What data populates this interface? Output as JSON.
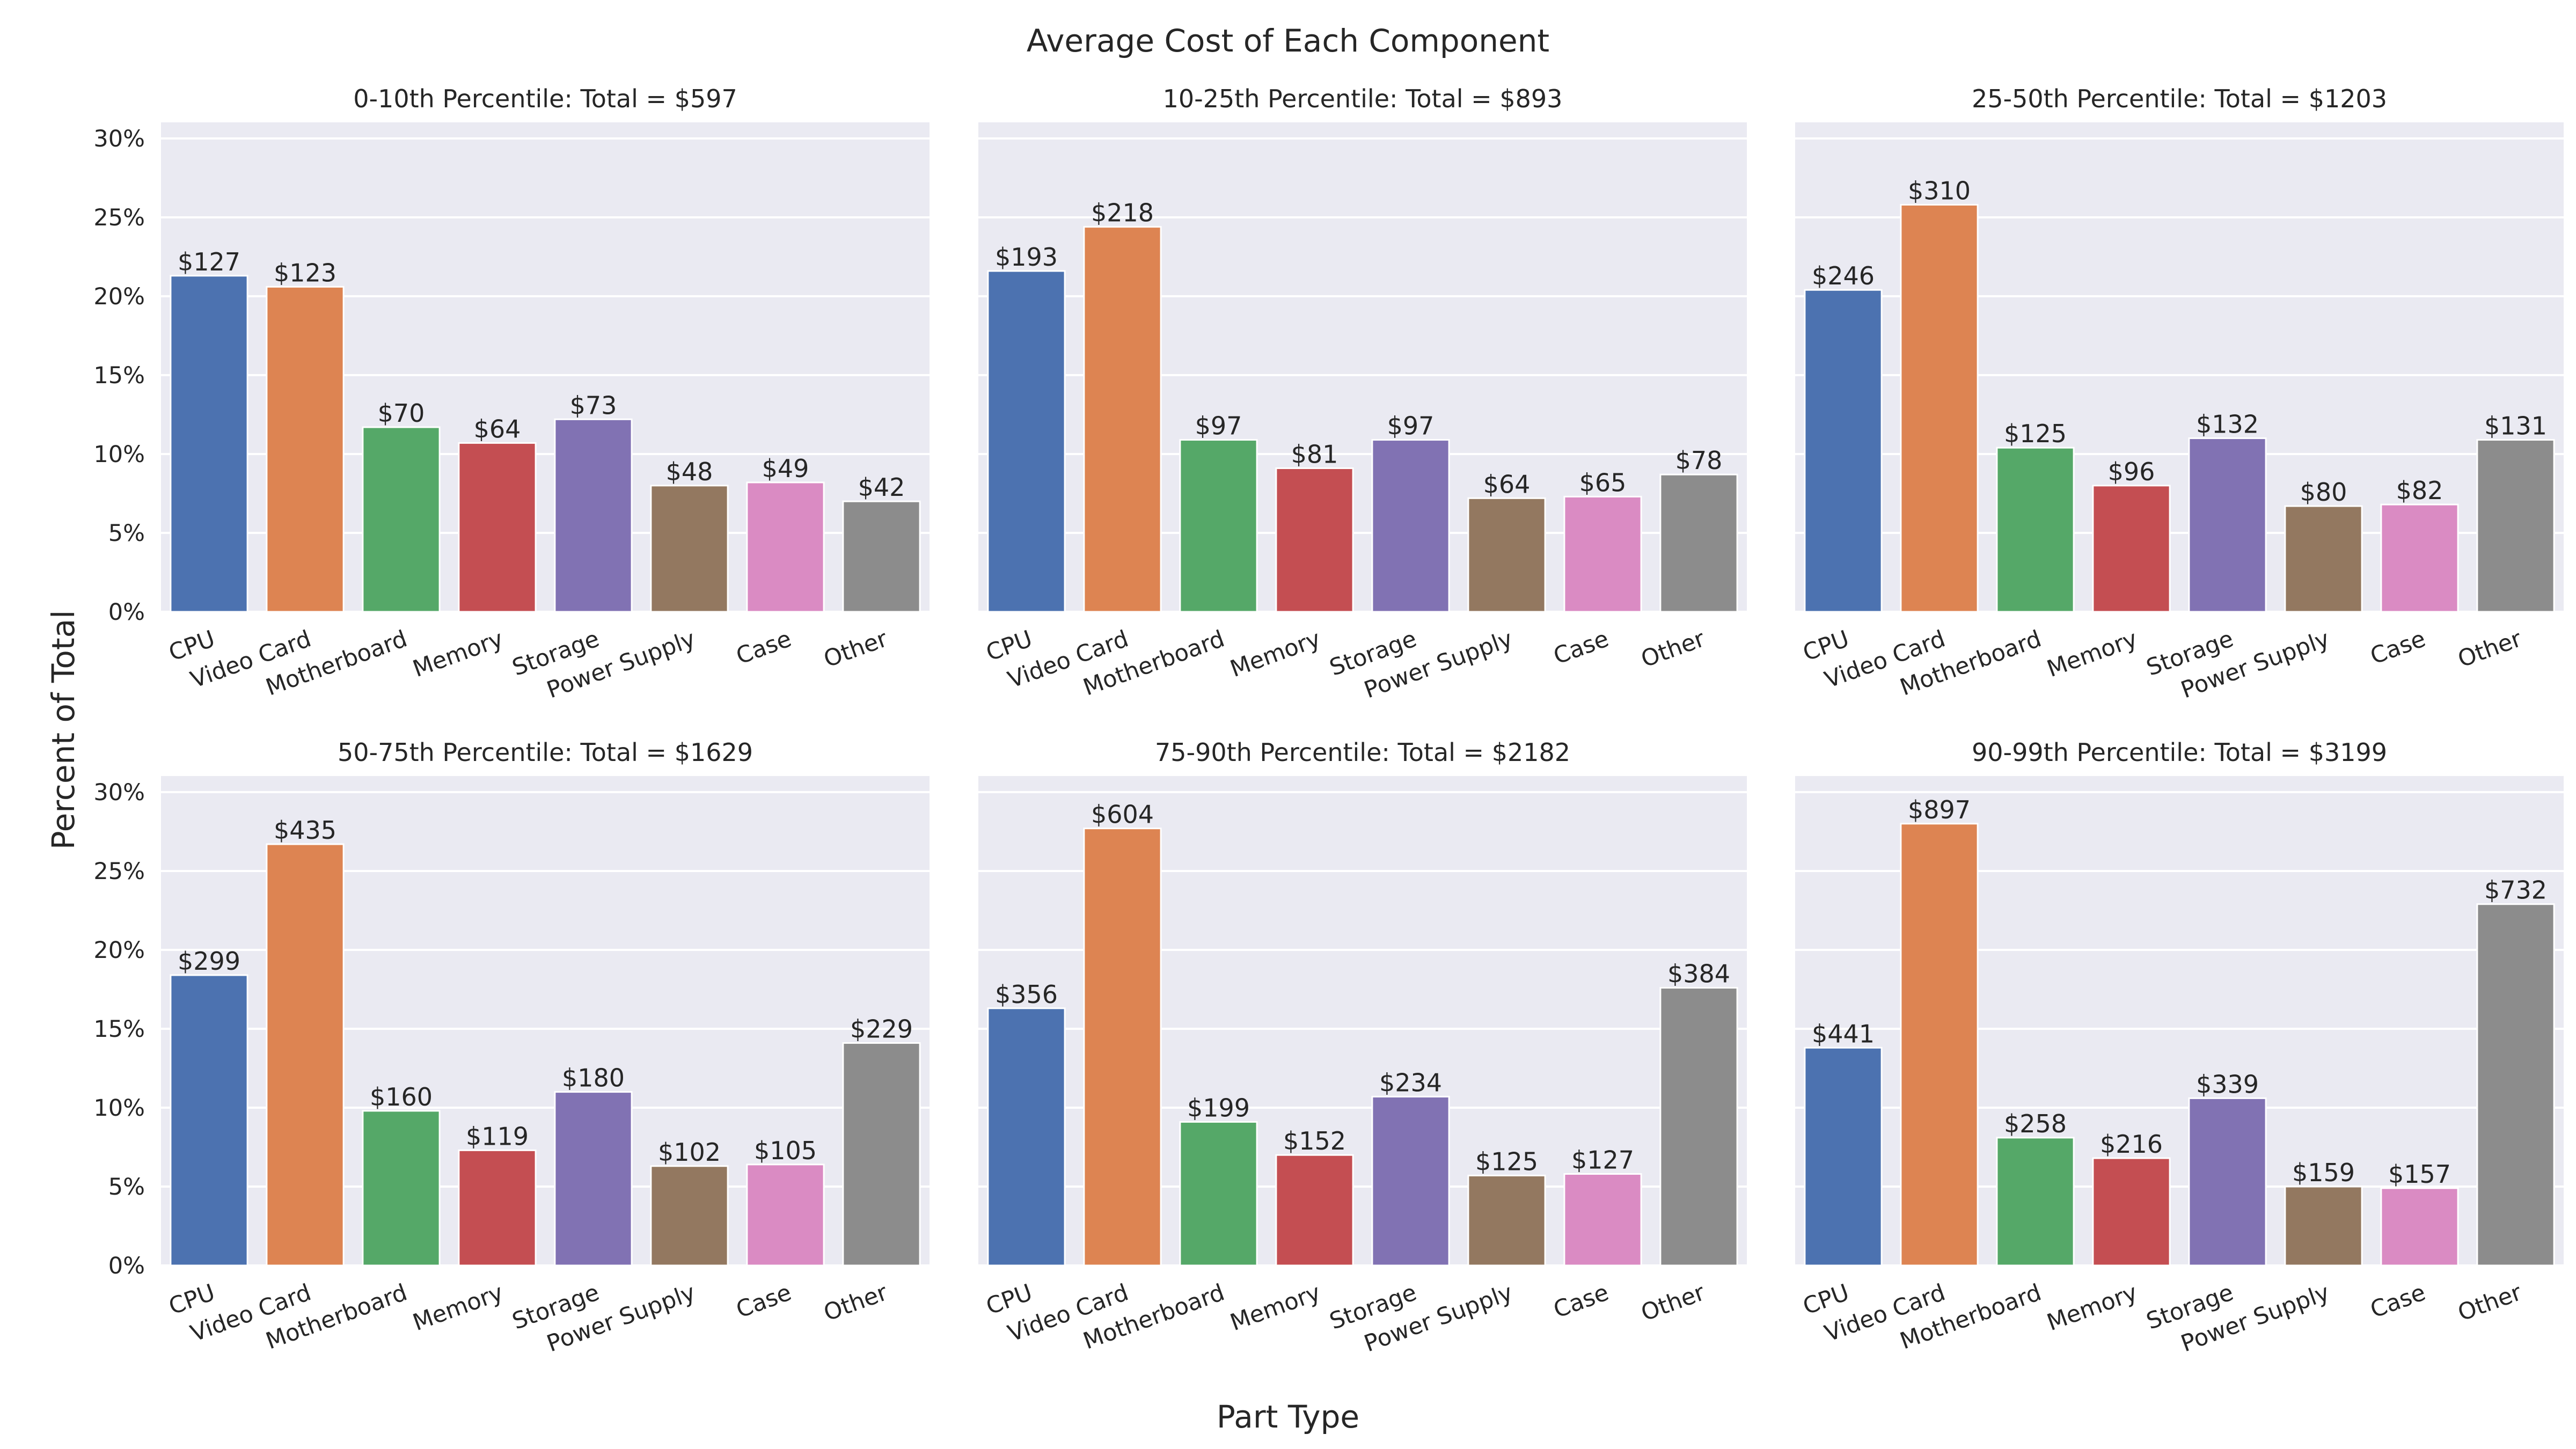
{
  "figure": {
    "title": "Average Cost of Each Component",
    "xlabel": "Part Type",
    "ylabel": "Percent of Total"
  },
  "colors": {
    "panel_background": "#eaeaf2",
    "grid": "#ffffff",
    "text": "#262626"
  },
  "chart_data": [
    {
      "type": "bar",
      "title": "0-10th Percentile: Total = $597",
      "categories": [
        "CPU",
        "Video Card",
        "Motherboard",
        "Memory",
        "Storage",
        "Power Supply",
        "Case",
        "Other"
      ],
      "values": [
        21.3,
        20.6,
        11.7,
        10.7,
        12.2,
        8.0,
        8.2,
        7.0
      ],
      "value_labels": [
        "$127",
        "$123",
        "$70",
        "$64",
        "$73",
        "$48",
        "$49",
        "$42"
      ],
      "colors": [
        "#4c72b0",
        "#dd8452",
        "#55a868",
        "#c44e52",
        "#8172b3",
        "#937860",
        "#da8bc3",
        "#8c8c8c"
      ],
      "ylim": [
        0,
        30
      ],
      "yticks": [
        "0%",
        "5%",
        "10%",
        "15%",
        "20%",
        "25%",
        "30%"
      ],
      "grid": true
    },
    {
      "type": "bar",
      "title": "10-25th Percentile: Total = $893",
      "categories": [
        "CPU",
        "Video Card",
        "Motherboard",
        "Memory",
        "Storage",
        "Power Supply",
        "Case",
        "Other"
      ],
      "values": [
        21.6,
        24.4,
        10.9,
        9.1,
        10.9,
        7.2,
        7.3,
        8.7
      ],
      "value_labels": [
        "$193",
        "$218",
        "$97",
        "$81",
        "$97",
        "$64",
        "$65",
        "$78"
      ],
      "colors": [
        "#4c72b0",
        "#dd8452",
        "#55a868",
        "#c44e52",
        "#8172b3",
        "#937860",
        "#da8bc3",
        "#8c8c8c"
      ],
      "ylim": [
        0,
        30
      ],
      "grid": true
    },
    {
      "type": "bar",
      "title": "25-50th Percentile: Total = $1203",
      "categories": [
        "CPU",
        "Video Card",
        "Motherboard",
        "Memory",
        "Storage",
        "Power Supply",
        "Case",
        "Other"
      ],
      "values": [
        20.4,
        25.8,
        10.4,
        8.0,
        11.0,
        6.7,
        6.8,
        10.9
      ],
      "value_labels": [
        "$246",
        "$310",
        "$125",
        "$96",
        "$132",
        "$80",
        "$82",
        "$131"
      ],
      "colors": [
        "#4c72b0",
        "#dd8452",
        "#55a868",
        "#c44e52",
        "#8172b3",
        "#937860",
        "#da8bc3",
        "#8c8c8c"
      ],
      "ylim": [
        0,
        30
      ],
      "grid": true
    },
    {
      "type": "bar",
      "title": "50-75th Percentile: Total = $1629",
      "categories": [
        "CPU",
        "Video Card",
        "Motherboard",
        "Memory",
        "Storage",
        "Power Supply",
        "Case",
        "Other"
      ],
      "values": [
        18.4,
        26.7,
        9.8,
        7.3,
        11.0,
        6.3,
        6.4,
        14.1
      ],
      "value_labels": [
        "$299",
        "$435",
        "$160",
        "$119",
        "$180",
        "$102",
        "$105",
        "$229"
      ],
      "colors": [
        "#4c72b0",
        "#dd8452",
        "#55a868",
        "#c44e52",
        "#8172b3",
        "#937860",
        "#da8bc3",
        "#8c8c8c"
      ],
      "ylim": [
        0,
        30
      ],
      "yticks": [
        "0%",
        "5%",
        "10%",
        "15%",
        "20%",
        "25%",
        "30%"
      ],
      "grid": true
    },
    {
      "type": "bar",
      "title": "75-90th Percentile: Total = $2182",
      "categories": [
        "CPU",
        "Video Card",
        "Motherboard",
        "Memory",
        "Storage",
        "Power Supply",
        "Case",
        "Other"
      ],
      "values": [
        16.3,
        27.7,
        9.1,
        7.0,
        10.7,
        5.7,
        5.8,
        17.6
      ],
      "value_labels": [
        "$356",
        "$604",
        "$199",
        "$152",
        "$234",
        "$125",
        "$127",
        "$384"
      ],
      "colors": [
        "#4c72b0",
        "#dd8452",
        "#55a868",
        "#c44e52",
        "#8172b3",
        "#937860",
        "#da8bc3",
        "#8c8c8c"
      ],
      "ylim": [
        0,
        30
      ],
      "grid": true
    },
    {
      "type": "bar",
      "title": "90-99th Percentile: Total = $3199",
      "categories": [
        "CPU",
        "Video Card",
        "Motherboard",
        "Memory",
        "Storage",
        "Power Supply",
        "Case",
        "Other"
      ],
      "values": [
        13.8,
        28.0,
        8.1,
        6.8,
        10.6,
        5.0,
        4.9,
        22.9
      ],
      "value_labels": [
        "$441",
        "$897",
        "$258",
        "$216",
        "$339",
        "$159",
        "$157",
        "$732"
      ],
      "colors": [
        "#4c72b0",
        "#dd8452",
        "#55a868",
        "#c44e52",
        "#8172b3",
        "#937860",
        "#da8bc3",
        "#8c8c8c"
      ],
      "ylim": [
        0,
        30
      ],
      "grid": true
    }
  ]
}
